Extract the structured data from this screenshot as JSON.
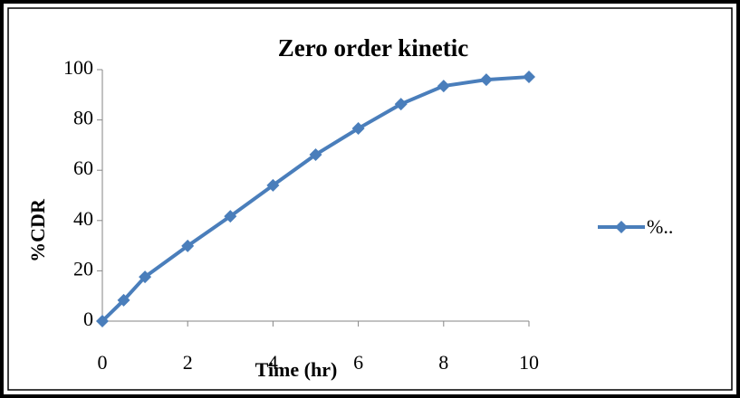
{
  "chart_data": {
    "type": "line",
    "title": "Zero order kinetic",
    "x_label": "Time (hr)",
    "y_label": "%CDR",
    "x": [
      0,
      0.5,
      1,
      2,
      3,
      4,
      5,
      6,
      7,
      8,
      9,
      10
    ],
    "series": [
      {
        "name": "%..",
        "color": "#4a7ebb",
        "values": [
          0,
          8.3,
          17.6,
          29.9,
          41.7,
          54,
          66.2,
          76.6,
          86.3,
          93.5,
          96,
          97.1
        ]
      }
    ],
    "xlim": [
      0,
      10
    ],
    "xticks": [
      0,
      2,
      4,
      6,
      8,
      10
    ],
    "ylim": [
      0,
      100
    ],
    "yticks": [
      0,
      20,
      40,
      60,
      80,
      100
    ],
    "grid": false,
    "legend": "right"
  }
}
